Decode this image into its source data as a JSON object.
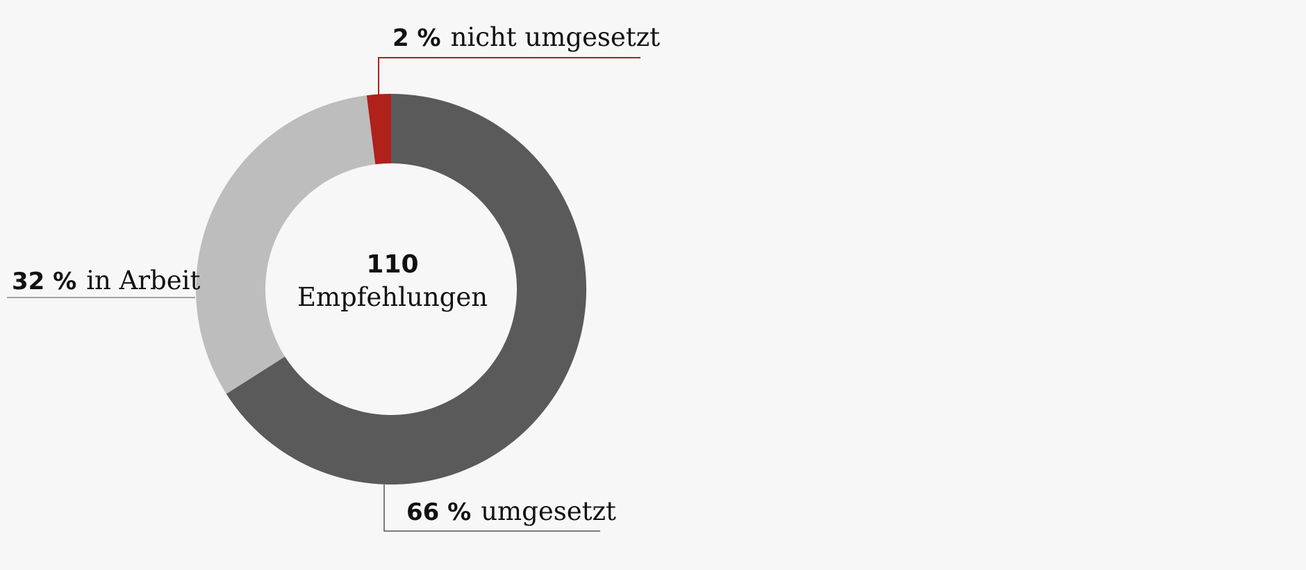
{
  "chart_data": {
    "type": "pie",
    "donut": true,
    "center": {
      "number": "110",
      "label": "Empfehlungen"
    },
    "slices": [
      {
        "key": "umgesetzt",
        "value": 66,
        "pct_label": "66 %",
        "label": "umgesetzt",
        "color": "#5a5a5a",
        "leader_color": "#555555"
      },
      {
        "key": "in_arbeit",
        "value": 32,
        "pct_label": "32 %",
        "label": "in Arbeit",
        "color": "#bdbdbd",
        "leader_color": "#8a8a8a"
      },
      {
        "key": "nicht_umgesetzt",
        "value": 2,
        "pct_label": "2 %",
        "label": "nicht umgesetzt",
        "color": "#b0211a",
        "leader_color": "#b0211a"
      }
    ]
  }
}
